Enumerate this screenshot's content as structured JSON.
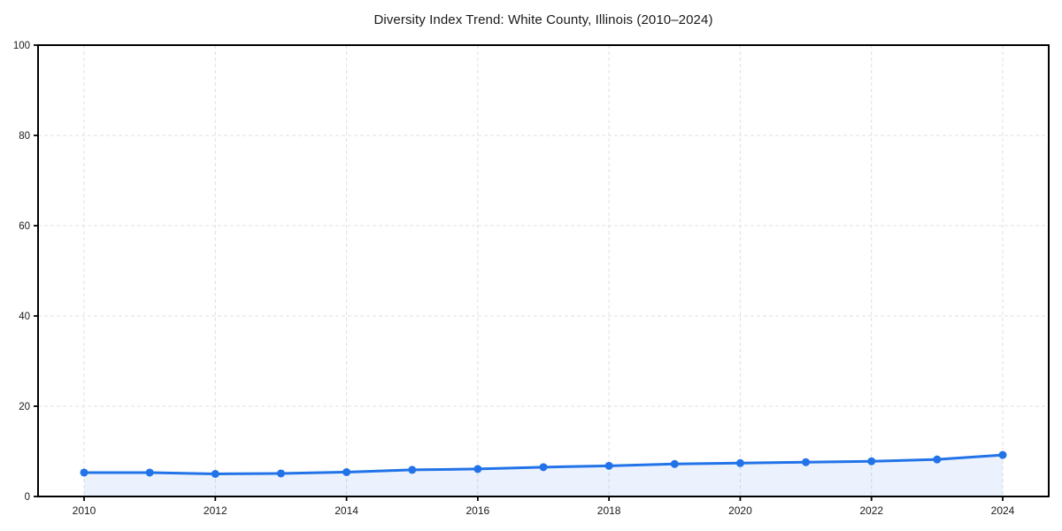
{
  "title": "Diversity Index Trend: White County, Illinois (2010–2024)",
  "chart_data": {
    "type": "line",
    "title": "Diversity Index Trend: White County, Illinois (2010–2024)",
    "x": [
      2010,
      2011,
      2012,
      2013,
      2014,
      2015,
      2016,
      2017,
      2018,
      2019,
      2020,
      2021,
      2022,
      2023,
      2024
    ],
    "series": [
      {
        "name": "Diversity Index",
        "values": [
          5.3,
          5.3,
          5.0,
          5.1,
          5.4,
          5.9,
          6.1,
          6.5,
          6.8,
          7.2,
          7.4,
          7.6,
          7.8,
          8.2,
          9.2
        ]
      }
    ],
    "xlabel": "",
    "ylabel": "",
    "ylim": [
      0,
      100
    ],
    "yticks": [
      0,
      20,
      40,
      60,
      80,
      100
    ],
    "xticks": [
      2010,
      2012,
      2014,
      2016,
      2018,
      2020,
      2022,
      2024
    ],
    "grid": true,
    "grid_style": "dashed",
    "legend_position": "none",
    "area_fill": true,
    "marker": "circle",
    "colors": {
      "line": "#2273e8",
      "marker": "#2273e8",
      "area_fill": "rgba(34, 115, 232, 0.09)",
      "grid": "#e0e0e0",
      "axis": "#000000",
      "text": "#1a1a1a",
      "background": "#ffffff"
    }
  }
}
